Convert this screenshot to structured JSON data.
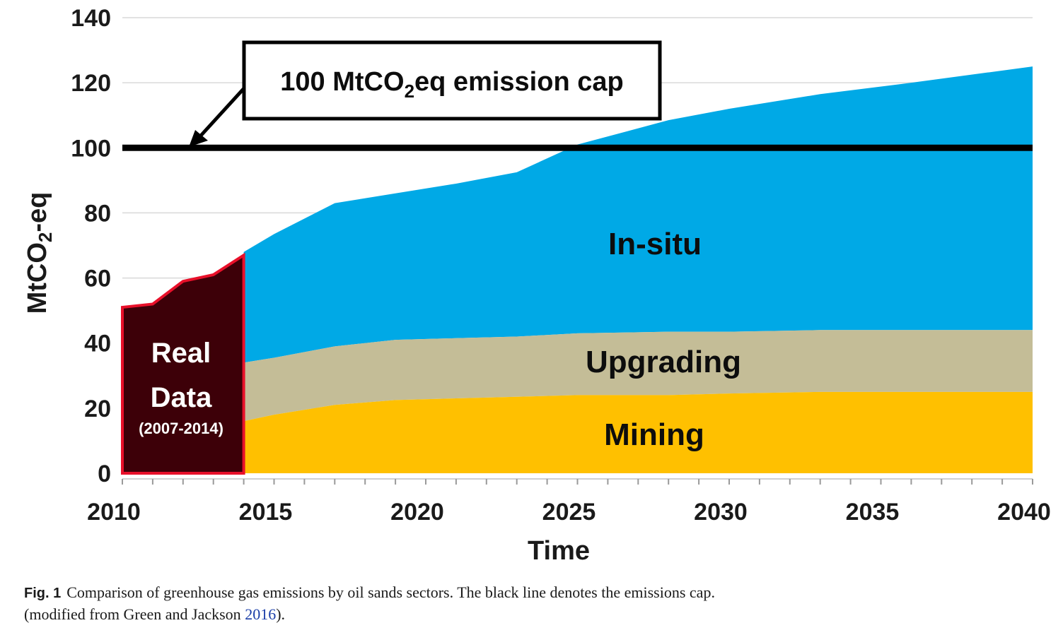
{
  "chart_data": {
    "type": "area",
    "title": "",
    "xlabel": "Time",
    "ylabel_main": "MtCO",
    "ylabel_sub": "2",
    "ylabel_tail": "-eq",
    "xlim": [
      2010,
      2040
    ],
    "ylim": [
      0,
      140
    ],
    "x_ticks": [
      2010,
      2015,
      2020,
      2025,
      2030,
      2035,
      2040
    ],
    "y_ticks": [
      0,
      20,
      40,
      60,
      80,
      100,
      120,
      140
    ],
    "grid": true,
    "colors": {
      "mining": "#FFC000",
      "upgrading": "#C4BD97",
      "insitu": "#00A9E6",
      "real_fill": "#3D0008",
      "real_edge": "#E8102A",
      "cap": "#000000"
    },
    "real_data": {
      "label_line1": "Real",
      "label_line2": "Data",
      "label_range": "(2007-2014)",
      "x": [
        2010,
        2011,
        2012,
        2013,
        2014
      ],
      "y": [
        51,
        52,
        59,
        61,
        67
      ]
    },
    "projection": {
      "x": [
        2014,
        2015,
        2017,
        2019,
        2021,
        2023,
        2025,
        2028,
        2030,
        2033,
        2036,
        2040
      ],
      "series": [
        {
          "name": "Mining",
          "values": [
            16,
            18,
            21,
            22.5,
            23,
            23.5,
            24,
            24,
            24.5,
            25,
            25,
            25
          ]
        },
        {
          "name": "Upgrading",
          "values": [
            18,
            17.5,
            18,
            18.5,
            18.5,
            18.5,
            19,
            19.5,
            19,
            19,
            19,
            19
          ]
        },
        {
          "name": "In-situ",
          "values": [
            34,
            38,
            44,
            45,
            47.5,
            50.5,
            58,
            65,
            68.5,
            72.5,
            76,
            81
          ]
        }
      ]
    },
    "cap": {
      "value": 100,
      "label_pre": "100 MtCO",
      "label_sub": "2",
      "label_post": "eq emission cap"
    }
  },
  "caption": {
    "fig_label": "Fig. 1",
    "text": "Comparison of greenhouse gas emissions by oil sands sectors. The black line denotes the emissions cap.",
    "line2_pre": "(modified from Green and Jackson ",
    "line2_ref": "2016",
    "line2_post": ")."
  }
}
